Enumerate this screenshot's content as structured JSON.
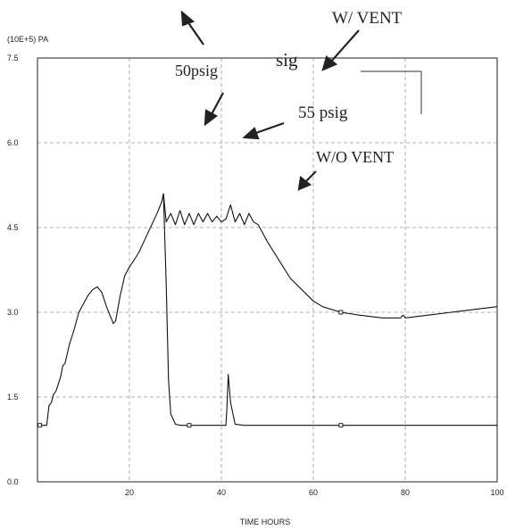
{
  "chart_data": {
    "type": "line",
    "title": "",
    "xlabel": "TIME HOURS",
    "ylabel": "(10E+5) PA",
    "xlim": [
      0,
      100
    ],
    "ylim": [
      0,
      7.5
    ],
    "x_ticks": [
      20,
      40,
      60,
      80,
      100
    ],
    "x_tick_labels": [
      "20",
      "40",
      "60",
      "80",
      "100"
    ],
    "y_ticks": [
      0,
      1.5,
      3.0,
      4.5,
      6.0,
      7.5
    ],
    "y_tick_labels": [
      "0.0",
      "1.5",
      "3.0",
      "4.5",
      "6.0",
      "7.5"
    ],
    "grid": true,
    "series": [
      {
        "name": "W/ VENT",
        "x": [
          0,
          1.5,
          2,
          2.5,
          3,
          3.5,
          4,
          5,
          5.5,
          6,
          7,
          8,
          9,
          10,
          11,
          12,
          13,
          14,
          15,
          16,
          16.5,
          17,
          18,
          19,
          20,
          22,
          24,
          26,
          27,
          27.4,
          28,
          28.5,
          29,
          30,
          31,
          32,
          33,
          34,
          35,
          40,
          41,
          41.2,
          41.5,
          42,
          43,
          45,
          47,
          55,
          60,
          70,
          75,
          79,
          79.5,
          80,
          85,
          90,
          95,
          100
        ],
        "y": [
          1.0,
          1.0,
          1.0,
          1.35,
          1.4,
          1.55,
          1.6,
          1.85,
          2.05,
          2.1,
          2.45,
          2.7,
          3.0,
          3.15,
          3.3,
          3.4,
          3.45,
          3.35,
          3.1,
          2.9,
          2.8,
          2.85,
          3.3,
          3.65,
          3.8,
          4.05,
          4.4,
          4.75,
          4.95,
          5.1,
          3.5,
          1.8,
          1.2,
          1.02,
          1.0,
          1.0,
          1.0,
          1.0,
          1.0,
          1.0,
          1.0,
          1.3,
          1.9,
          1.4,
          1.02,
          1.0,
          1.0,
          1.0,
          1.0,
          1.0,
          1.0,
          1.0,
          1.0,
          1.0,
          1.0,
          1.0,
          1.0,
          1.0
        ],
        "markers": [
          [
            0.5,
            1.0
          ],
          [
            33,
            1.0
          ],
          [
            66,
            1.0
          ]
        ]
      },
      {
        "name": "W/O VENT",
        "x": [
          27.4,
          28,
          29,
          30,
          31,
          32,
          33,
          34,
          35,
          36,
          37,
          38,
          39,
          40,
          41,
          42,
          43,
          44,
          45,
          46,
          47,
          48,
          50,
          55,
          60,
          62,
          66,
          70,
          75,
          79,
          79.5,
          80,
          85,
          90,
          95,
          100
        ],
        "y": [
          5.1,
          4.6,
          4.75,
          4.55,
          4.8,
          4.55,
          4.75,
          4.55,
          4.75,
          4.6,
          4.75,
          4.6,
          4.7,
          4.6,
          4.65,
          4.9,
          4.6,
          4.75,
          4.55,
          4.75,
          4.6,
          4.55,
          4.25,
          3.6,
          3.2,
          3.1,
          3.0,
          2.95,
          2.9,
          2.9,
          2.95,
          2.9,
          2.95,
          3.0,
          3.05,
          3.1
        ],
        "markers": [
          [
            66,
            3.0
          ]
        ]
      }
    ],
    "annotations": [
      {
        "id": "w-vent",
        "text": "W/ VENT"
      },
      {
        "id": "sig",
        "text": "sig"
      },
      {
        "id": "50psig",
        "text": "50psig"
      },
      {
        "id": "55psig",
        "text": "55 psig"
      },
      {
        "id": "wo-vent",
        "text": "W/O VENT"
      }
    ]
  }
}
